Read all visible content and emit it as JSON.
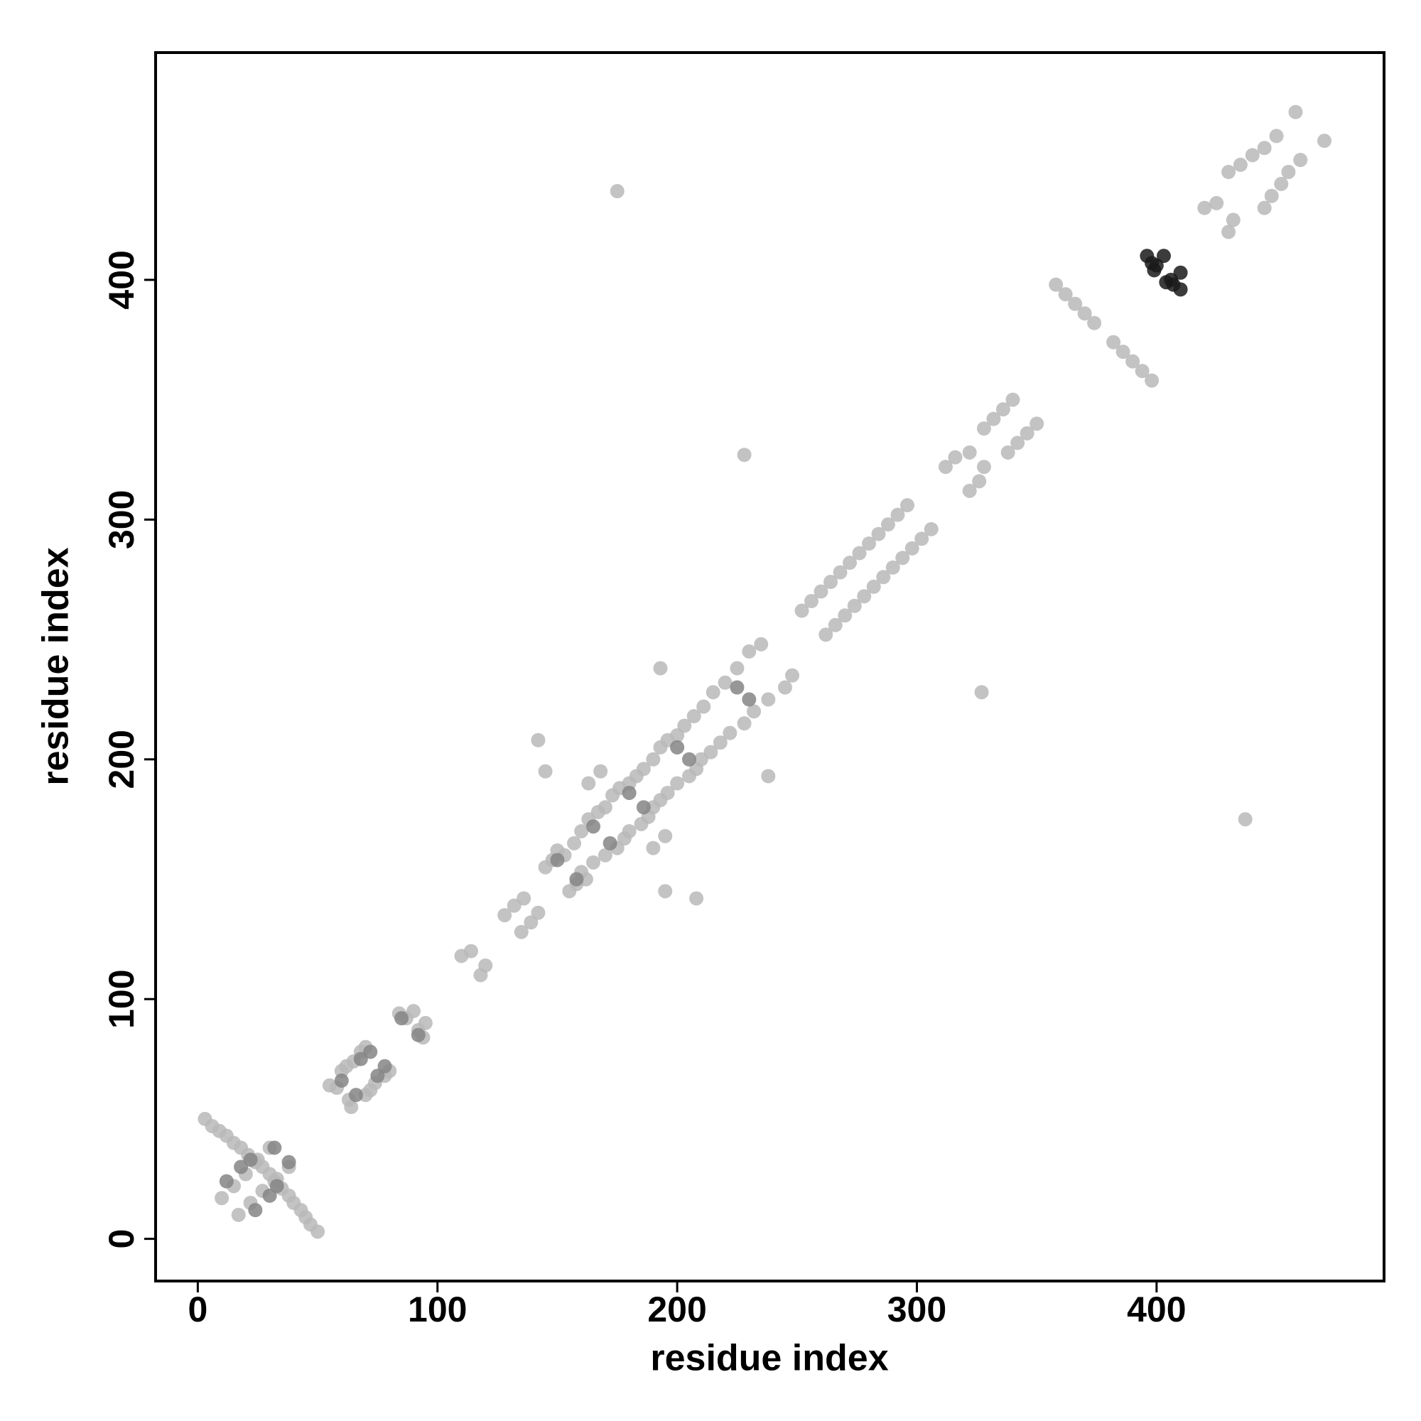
{
  "chart_data": {
    "type": "scatter",
    "xlabel": "residue index",
    "ylabel": "residue index",
    "xlim": [
      -17.6,
      494.9
    ],
    "ylim": [
      -17.6,
      494.8
    ],
    "xticks": [
      0,
      100,
      200,
      300,
      400
    ],
    "yticks": [
      0,
      100,
      200,
      300,
      400
    ],
    "series": [
      {
        "color": "#b8b8b8",
        "x": [
          3,
          6,
          9,
          12,
          15,
          18,
          21,
          24,
          27,
          10,
          15,
          20,
          25,
          30,
          55,
          60,
          65,
          68,
          58,
          62,
          70,
          84,
          87,
          90,
          110,
          114,
          128,
          132,
          136,
          145,
          148,
          150,
          153,
          157,
          160,
          163,
          167,
          170,
          173,
          176,
          180,
          183,
          186,
          190,
          193,
          196,
          200,
          203,
          207,
          211,
          215,
          220,
          225,
          230,
          235,
          163,
          168,
          252,
          256,
          260,
          264,
          268,
          272,
          276,
          280,
          284,
          288,
          292,
          296,
          312,
          316,
          322,
          328,
          332,
          336,
          340,
          358,
          362,
          366,
          370,
          374,
          420,
          425,
          430,
          435,
          440,
          445,
          450,
          458,
          175,
          228,
          142,
          145,
          193,
          50,
          47,
          45,
          43,
          40,
          38,
          35,
          32,
          30,
          17,
          22,
          27,
          33,
          38,
          64,
          70,
          74,
          78,
          63,
          72,
          80,
          94,
          92,
          95,
          118,
          120,
          135,
          139,
          142,
          155,
          158,
          162,
          160,
          165,
          170,
          175,
          178,
          180,
          185,
          188,
          190,
          193,
          196,
          200,
          205,
          208,
          210,
          214,
          218,
          222,
          228,
          232,
          238,
          245,
          248,
          190,
          195,
          262,
          266,
          270,
          274,
          278,
          282,
          286,
          290,
          294,
          298,
          302,
          306,
          322,
          326,
          328,
          338,
          342,
          346,
          350,
          398,
          394,
          390,
          386,
          382,
          430,
          432,
          445,
          448,
          452,
          455,
          460,
          470,
          437,
          327,
          208,
          195,
          238
        ],
        "y": [
          50,
          47,
          45,
          43,
          40,
          38,
          35,
          32,
          30,
          17,
          22,
          27,
          33,
          38,
          64,
          70,
          74,
          78,
          63,
          72,
          80,
          94,
          92,
          95,
          118,
          120,
          135,
          139,
          142,
          155,
          158,
          162,
          160,
          165,
          170,
          175,
          178,
          180,
          185,
          188,
          190,
          193,
          196,
          200,
          205,
          208,
          210,
          214,
          218,
          222,
          228,
          232,
          238,
          245,
          248,
          190,
          195,
          262,
          266,
          270,
          274,
          278,
          282,
          286,
          290,
          294,
          298,
          302,
          306,
          322,
          326,
          328,
          338,
          342,
          346,
          350,
          398,
          394,
          390,
          386,
          382,
          430,
          432,
          445,
          448,
          452,
          455,
          460,
          470,
          437,
          327,
          208,
          195,
          238,
          3,
          6,
          9,
          12,
          15,
          18,
          21,
          24,
          27,
          10,
          15,
          20,
          25,
          30,
          55,
          60,
          65,
          68,
          58,
          62,
          70,
          84,
          87,
          90,
          110,
          114,
          128,
          132,
          136,
          145,
          148,
          150,
          153,
          157,
          160,
          163,
          167,
          170,
          173,
          176,
          180,
          183,
          186,
          190,
          193,
          196,
          200,
          203,
          207,
          211,
          215,
          220,
          225,
          230,
          235,
          163,
          168,
          252,
          256,
          260,
          264,
          268,
          272,
          276,
          280,
          284,
          288,
          292,
          296,
          312,
          316,
          322,
          328,
          332,
          336,
          340,
          358,
          362,
          366,
          370,
          374,
          420,
          425,
          430,
          435,
          440,
          445,
          450,
          458,
          175,
          228,
          142,
          145,
          193
        ]
      },
      {
        "color": "#858585",
        "x": [
          12,
          18,
          22,
          32,
          60,
          72,
          68,
          85,
          150,
          165,
          180,
          200,
          225,
          24,
          30,
          33,
          38,
          66,
          78,
          75,
          92,
          158,
          172,
          186,
          205,
          230
        ],
        "y": [
          24,
          30,
          33,
          38,
          66,
          78,
          75,
          92,
          158,
          172,
          186,
          205,
          230,
          12,
          18,
          22,
          32,
          60,
          72,
          68,
          85,
          150,
          165,
          180,
          200,
          225
        ]
      },
      {
        "color": "#1a1a1a",
        "x": [
          396,
          398,
          400,
          403,
          399,
          410,
          407,
          406,
          410,
          404
        ],
        "y": [
          410,
          407,
          406,
          410,
          404,
          396,
          398,
          400,
          403,
          399
        ]
      }
    ]
  }
}
